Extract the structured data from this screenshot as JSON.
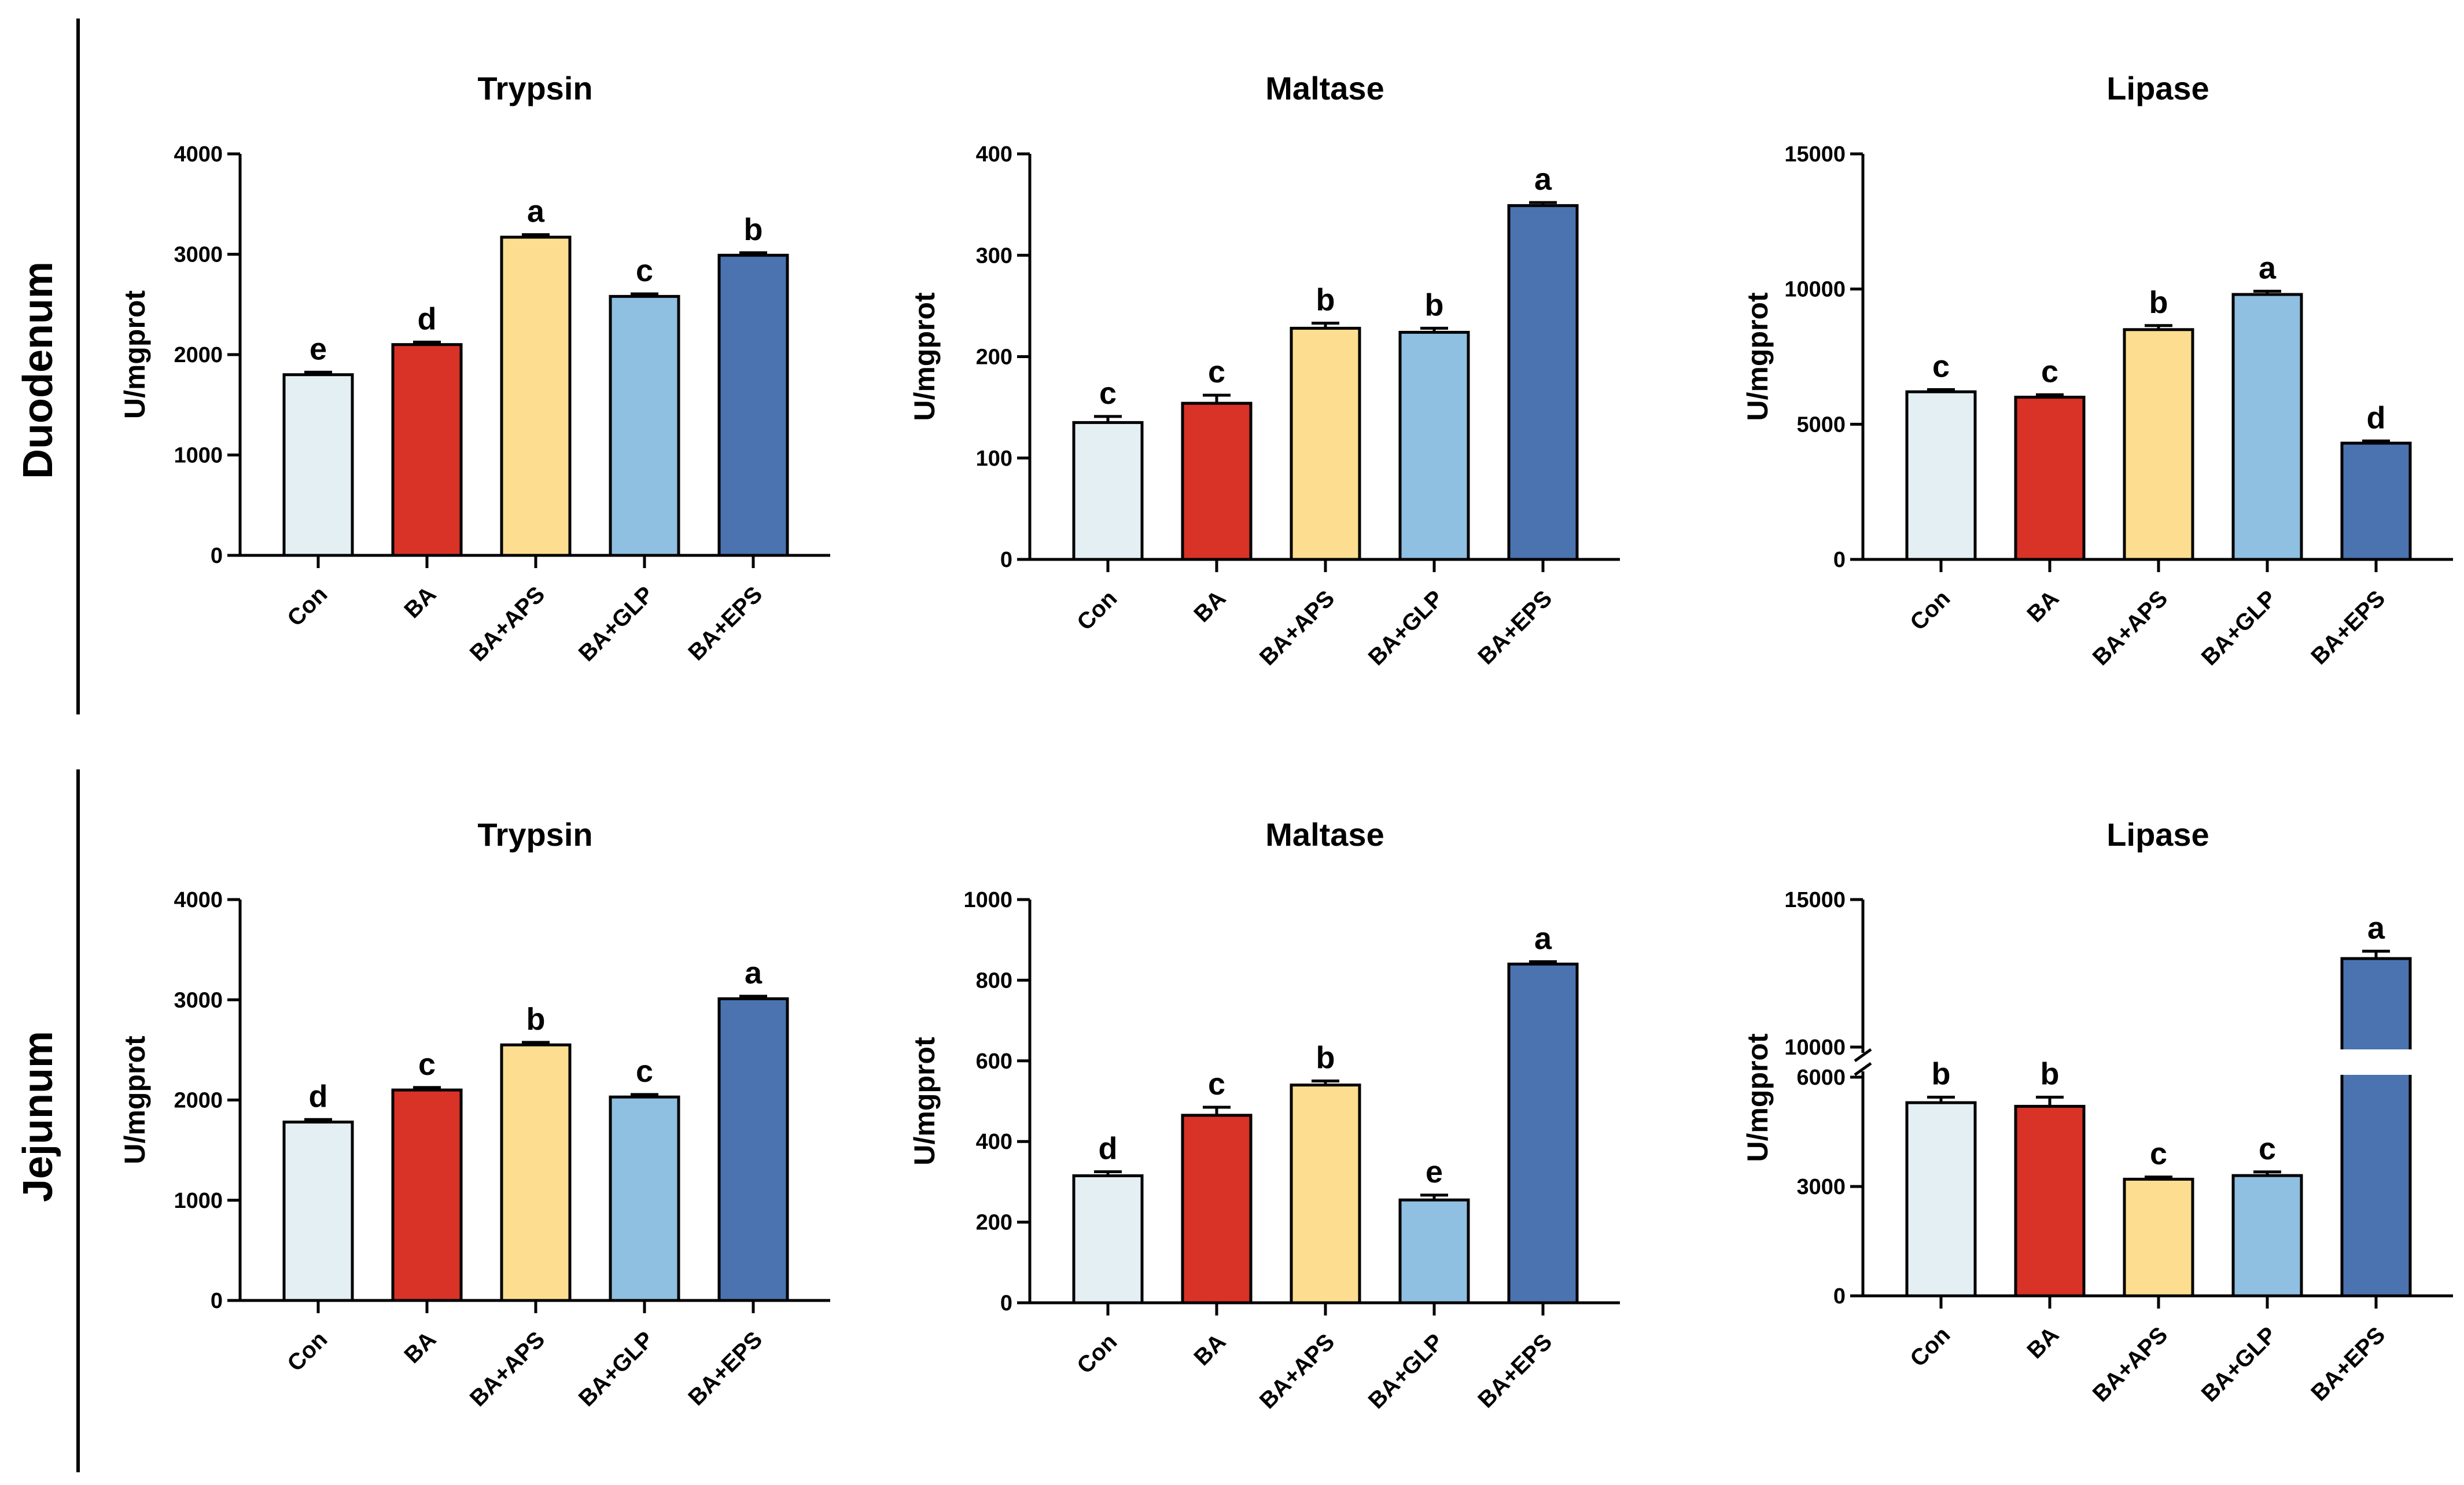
{
  "figure": {
    "row_labels": [
      "Duodenum",
      "Jejunum"
    ]
  },
  "chart_data": [
    {
      "type": "bar",
      "row": "Duodenum",
      "title": "Trypsin",
      "xlabel": "",
      "ylabel": "U/mgprot",
      "categories": [
        "Con",
        "BA",
        "BA+APS",
        "BA+GLP",
        "BA+EPS"
      ],
      "values": [
        1800,
        2100,
        3170,
        2580,
        2990
      ],
      "errors": [
        25,
        25,
        25,
        25,
        25
      ],
      "significance": [
        "e",
        "d",
        "a",
        "c",
        "b"
      ],
      "colors": [
        "#e4eff3",
        "#d93226",
        "#fdde90",
        "#8fbfe1",
        "#4a73b0"
      ],
      "ylim": [
        0,
        4000
      ],
      "yticks": [
        0,
        1000,
        2000,
        3000,
        4000
      ],
      "ytick_labels": [
        "0",
        "1000",
        "2000",
        "3000",
        "4000"
      ]
    },
    {
      "type": "bar",
      "row": "Duodenum",
      "title": "Maltase",
      "xlabel": "",
      "ylabel": "U/mgprot",
      "categories": [
        "Con",
        "BA",
        "BA+APS",
        "BA+GLP",
        "BA+EPS"
      ],
      "values": [
        135,
        154,
        228,
        224,
        349
      ],
      "errors": [
        6,
        8,
        5,
        4,
        3
      ],
      "significance": [
        "c",
        "c",
        "b",
        "b",
        "a"
      ],
      "colors": [
        "#e4eff3",
        "#d93226",
        "#fdde90",
        "#8fbfe1",
        "#4a73b0"
      ],
      "ylim": [
        0,
        400
      ],
      "yticks": [
        0,
        100,
        200,
        300,
        400
      ],
      "ytick_labels": [
        "0",
        "100",
        "200",
        "300",
        "400"
      ]
    },
    {
      "type": "bar",
      "row": "Duodenum",
      "title": "Lipase",
      "xlabel": "",
      "ylabel": "U/mgprot",
      "categories": [
        "Con",
        "BA",
        "BA+APS",
        "BA+GLP",
        "BA+EPS"
      ],
      "values": [
        6200,
        6000,
        8500,
        9800,
        4300
      ],
      "errors": [
        80,
        90,
        150,
        120,
        80
      ],
      "significance": [
        "c",
        "c",
        "b",
        "a",
        "d"
      ],
      "colors": [
        "#e4eff3",
        "#d93226",
        "#fdde90",
        "#8fbfe1",
        "#4a73b0"
      ],
      "ylim": [
        0,
        15000
      ],
      "yticks": [
        0,
        5000,
        10000,
        15000
      ],
      "ytick_labels": [
        "0",
        "5000",
        "10000",
        "15000"
      ]
    },
    {
      "type": "bar",
      "row": "Jejunum",
      "title": "Trypsin",
      "xlabel": "",
      "ylabel": "U/mgprot",
      "categories": [
        "Con",
        "BA",
        "BA+APS",
        "BA+GLP",
        "BA+EPS"
      ],
      "values": [
        1780,
        2100,
        2550,
        2030,
        3010
      ],
      "errors": [
        25,
        25,
        25,
        25,
        25
      ],
      "significance": [
        "d",
        "c",
        "b",
        "c",
        "a"
      ],
      "colors": [
        "#e4eff3",
        "#d93226",
        "#fdde90",
        "#8fbfe1",
        "#4a73b0"
      ],
      "ylim": [
        0,
        4000
      ],
      "yticks": [
        0,
        1000,
        2000,
        3000,
        4000
      ],
      "ytick_labels": [
        "0",
        "1000",
        "2000",
        "3000",
        "4000"
      ]
    },
    {
      "type": "bar",
      "row": "Jejunum",
      "title": "Maltase",
      "xlabel": "",
      "ylabel": "U/mgprot",
      "categories": [
        "Con",
        "BA",
        "BA+APS",
        "BA+GLP",
        "BA+EPS"
      ],
      "values": [
        315,
        465,
        540,
        255,
        840
      ],
      "errors": [
        10,
        20,
        10,
        12,
        6
      ],
      "significance": [
        "d",
        "c",
        "b",
        "e",
        "a"
      ],
      "colors": [
        "#e4eff3",
        "#d93226",
        "#fdde90",
        "#8fbfe1",
        "#4a73b0"
      ],
      "ylim": [
        0,
        1000
      ],
      "yticks": [
        0,
        200,
        400,
        600,
        800,
        1000
      ],
      "ytick_labels": [
        "0",
        "200",
        "400",
        "600",
        "800",
        "1000"
      ]
    },
    {
      "type": "bar",
      "row": "Jejunum",
      "title": "Lipase",
      "xlabel": "",
      "ylabel": "U/mgprot",
      "categories": [
        "Con",
        "BA",
        "BA+APS",
        "BA+GLP",
        "BA+EPS"
      ],
      "values": [
        5300,
        5200,
        3200,
        3300,
        13000
      ],
      "errors": [
        150,
        250,
        60,
        100,
        250
      ],
      "significance": [
        "b",
        "b",
        "c",
        "c",
        "a"
      ],
      "colors": [
        "#e4eff3",
        "#d93226",
        "#fdde90",
        "#8fbfe1",
        "#4a73b0"
      ],
      "ylim": [
        0,
        15000
      ],
      "axis_break": [
        6000,
        10000
      ],
      "yticks": [
        0,
        3000,
        6000,
        10000,
        15000
      ],
      "ytick_labels": [
        "0",
        "3000",
        "6000",
        "10000",
        "15000"
      ]
    }
  ]
}
